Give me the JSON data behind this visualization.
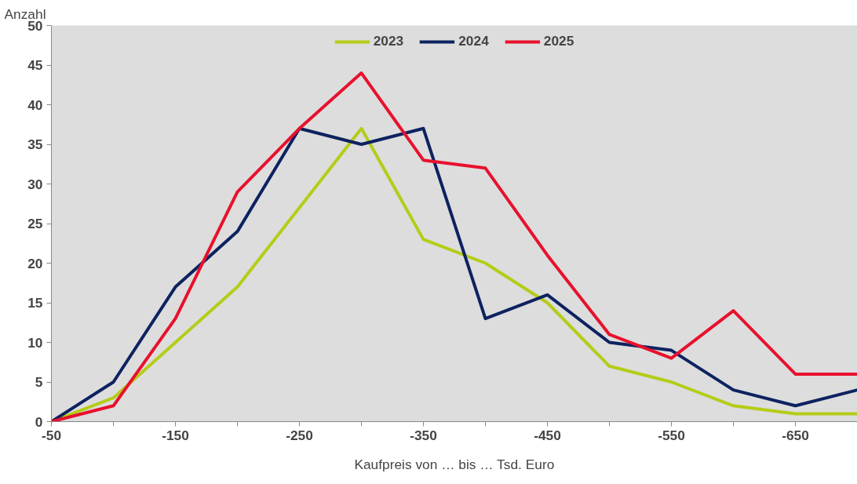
{
  "chart_data": {
    "type": "line",
    "xlabel": "Kaufpreis von … bis … Tsd. Euro",
    "ylabel": "Anzahl",
    "categories": [
      "-50",
      null,
      "-150",
      null,
      "-250",
      null,
      "-350",
      null,
      "-450",
      null,
      "-550",
      null,
      "-650",
      null
    ],
    "series": [
      {
        "name": "2023",
        "color": "#b5cc18",
        "values": [
          0,
          3,
          10,
          17,
          27,
          37,
          23,
          20,
          15,
          7,
          5,
          2,
          1,
          1
        ]
      },
      {
        "name": "2024",
        "color": "#0d2260",
        "values": [
          0,
          5,
          17,
          24,
          37,
          35,
          37,
          13,
          16,
          10,
          9,
          4,
          2,
          4
        ]
      },
      {
        "name": "2025",
        "color": "#e8112d",
        "values": [
          0,
          2,
          13,
          29,
          37,
          44,
          33,
          32,
          21,
          11,
          8,
          14,
          6,
          6
        ]
      }
    ],
    "ylim": [
      0,
      50
    ],
    "yticks": [
      0,
      5,
      10,
      15,
      20,
      25,
      30,
      35,
      40,
      45,
      50
    ],
    "grid": false,
    "legend": "top",
    "marker": "none",
    "line_style": "solid"
  }
}
